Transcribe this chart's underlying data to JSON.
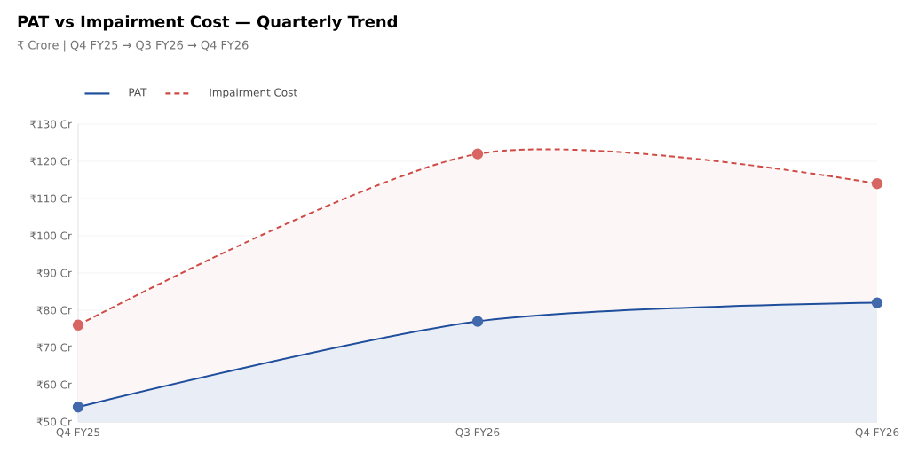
{
  "chart_data": {
    "type": "area",
    "title": "PAT vs Impairment Cost — Quarterly Trend",
    "subtitle": "₹ Crore | Q4 FY25 → Q3 FY26 → Q4 FY26",
    "categories": [
      "Q4 FY25",
      "Q3 FY26",
      "Q4 FY26"
    ],
    "series": [
      {
        "name": "PAT",
        "color": "#1f4e9c",
        "values": [
          54,
          77,
          82
        ],
        "line_style": "solid"
      },
      {
        "name": "Impairment Cost",
        "color": "#d04a45",
        "values": [
          76,
          122,
          114
        ],
        "line_style": "dashed"
      }
    ],
    "ylim": [
      50,
      130
    ],
    "yticks": [
      {
        "value": 50,
        "label": "₹50 Cr"
      },
      {
        "value": 60,
        "label": "₹60 Cr"
      },
      {
        "value": 70,
        "label": "₹70 Cr"
      },
      {
        "value": 80,
        "label": "₹80 Cr"
      },
      {
        "value": 90,
        "label": "₹90 Cr"
      },
      {
        "value": 100,
        "label": "₹100 Cr"
      },
      {
        "value": 110,
        "label": "₹110 Cr"
      },
      {
        "value": 120,
        "label": "₹120 Cr"
      },
      {
        "value": 130,
        "label": "₹130 Cr"
      }
    ],
    "grid": "y",
    "legend": "top left",
    "marker": "circle"
  }
}
